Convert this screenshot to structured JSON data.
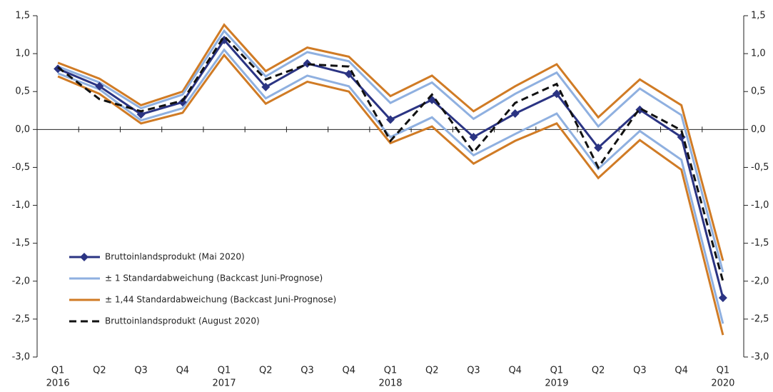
{
  "chart_data": {
    "type": "line",
    "categories": [
      "Q1",
      "Q2",
      "Q3",
      "Q4",
      "Q1",
      "Q2",
      "Q3",
      "Q4",
      "Q1",
      "Q2",
      "Q3",
      "Q4",
      "Q1",
      "Q2",
      "Q3",
      "Q4",
      "Q1"
    ],
    "years": [
      "2016",
      null,
      null,
      null,
      "2017",
      null,
      null,
      null,
      "2018",
      null,
      null,
      null,
      "2019",
      null,
      null,
      null,
      "2020"
    ],
    "series": [
      {
        "name": "Bruttoinlandsprodukt (Mai 2020)",
        "color": "#2b3483",
        "style": "solid-marker",
        "values": [
          0.8,
          0.57,
          0.2,
          0.36,
          1.18,
          0.56,
          0.87,
          0.73,
          0.13,
          0.39,
          -0.1,
          0.21,
          0.47,
          -0.24,
          0.26,
          -0.1,
          -2.22
        ]
      },
      {
        "name": "± 1 Standardabweichung (Backcast Juni-Prognose)",
        "color": "#8fb0e0",
        "style": "band",
        "upper": [
          0.83,
          0.62,
          0.28,
          0.46,
          1.3,
          0.7,
          1.02,
          0.9,
          0.35,
          0.62,
          0.14,
          0.47,
          0.75,
          0.04,
          0.54,
          0.19,
          -1.88
        ],
        "lower": [
          0.74,
          0.53,
          0.12,
          0.28,
          1.05,
          0.41,
          0.71,
          0.57,
          -0.1,
          0.16,
          -0.34,
          -0.06,
          0.21,
          -0.52,
          -0.02,
          -0.4,
          -2.56
        ]
      },
      {
        "name": "± 1,44 Standardabweichung (Backcast Juni-Prognose)",
        "color": "#d07b25",
        "style": "band",
        "upper": [
          0.88,
          0.67,
          0.32,
          0.5,
          1.38,
          0.77,
          1.08,
          0.96,
          0.44,
          0.71,
          0.24,
          0.57,
          0.86,
          0.16,
          0.66,
          0.32,
          -1.73
        ],
        "lower": [
          0.7,
          0.47,
          0.08,
          0.22,
          0.98,
          0.34,
          0.63,
          0.5,
          -0.18,
          0.04,
          -0.45,
          -0.15,
          0.08,
          -0.64,
          -0.14,
          -0.53,
          -2.71
        ]
      },
      {
        "name": "Bruttoinlandsprodukt (August 2020)",
        "color": "#111111",
        "style": "dashed",
        "values": [
          0.82,
          0.4,
          0.24,
          0.38,
          1.23,
          0.66,
          0.86,
          0.83,
          -0.15,
          0.46,
          -0.3,
          0.35,
          0.6,
          -0.5,
          0.28,
          -0.01,
          -2.0
        ]
      }
    ],
    "ylim": [
      -3,
      1.5
    ],
    "yticks": [
      {
        "value": -3,
        "label": "-3,0"
      },
      {
        "value": -2.5,
        "label": "-2,5"
      },
      {
        "value": -2,
        "label": "-2,0"
      },
      {
        "value": -1.5,
        "label": "-1,5"
      },
      {
        "value": -1,
        "label": "-1,0"
      },
      {
        "value": -0.5,
        "label": "-0,5"
      },
      {
        "value": 0,
        "label": "0,0"
      },
      {
        "value": 0.5,
        "label": "0,5"
      },
      {
        "value": 1,
        "label": "1,0"
      },
      {
        "value": 1.5,
        "label": "1,5"
      }
    ],
    "y2lim": [
      -3,
      1.5
    ],
    "y2ticks": [
      {
        "value": -3,
        "label": "-3,0"
      },
      {
        "value": -2.5,
        "label": "-2,5"
      },
      {
        "value": -2,
        "label": "-2,0"
      },
      {
        "value": -1.5,
        "label": "-1,5"
      },
      {
        "value": -1,
        "label": "-1,0"
      },
      {
        "value": -0.5,
        "label": "-0,5"
      },
      {
        "value": 0,
        "label": "0,0"
      },
      {
        "value": 0.5,
        "label": "0,5"
      },
      {
        "value": 1,
        "label": "1,0"
      },
      {
        "value": 1.5,
        "label": "1,5"
      }
    ],
    "legend": "lower-left"
  }
}
